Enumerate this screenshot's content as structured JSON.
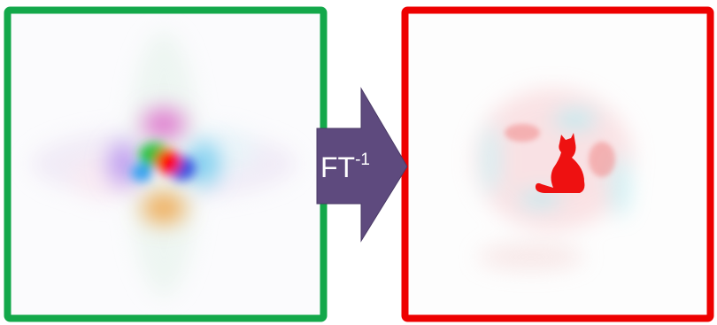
{
  "arrow": {
    "label": "FT",
    "superscript": "-1"
  }
}
